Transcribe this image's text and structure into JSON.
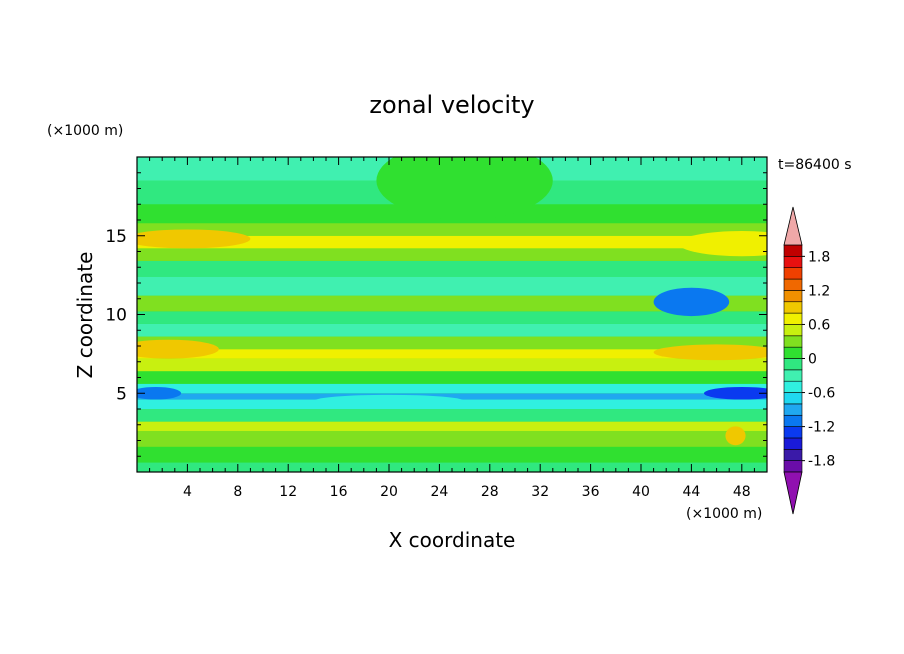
{
  "chart_data": {
    "type": "heatmap",
    "title": "zonal velocity",
    "xlabel": "X coordinate",
    "ylabel": "Z coordinate",
    "x_unit": "(×1000 m)",
    "y_unit": "(×1000 m)",
    "time_label": "t=86400 s",
    "xlim": [
      0,
      50
    ],
    "ylim": [
      0,
      20
    ],
    "x_ticks": [
      4,
      8,
      12,
      16,
      20,
      24,
      28,
      32,
      36,
      40,
      44,
      48
    ],
    "y_ticks": [
      5,
      10,
      15
    ],
    "colorbar": {
      "levels": [
        -2.0,
        -1.8,
        -1.6,
        -1.4,
        -1.2,
        -1.0,
        -0.8,
        -0.6,
        -0.4,
        -0.2,
        0,
        0.2,
        0.4,
        0.6,
        0.8,
        1.0,
        1.2,
        1.4,
        1.6,
        1.8,
        2.0
      ],
      "labels": [
        "-1.8",
        "-1.2",
        "-0.6",
        "0",
        "0.6",
        "1.2",
        "1.8"
      ],
      "label_values": [
        -1.8,
        -1.2,
        -0.6,
        0,
        0.6,
        1.2,
        1.8
      ],
      "colors": [
        "#6a0da8",
        "#3a1aa8",
        "#1a1ad8",
        "#0a3af0",
        "#0a78f0",
        "#20a8f0",
        "#20d8f0",
        "#30f0e0",
        "#40f0b0",
        "#30e880",
        "#30e030",
        "#80e020",
        "#c8f010",
        "#f0f000",
        "#f0c800",
        "#f09000",
        "#f06800",
        "#f04000",
        "#e81010",
        "#c00000"
      ],
      "under_color": "#9010b0",
      "over_color": "#f0a8a8"
    },
    "bands": [
      {
        "z": 0.6,
        "value": -0.1
      },
      {
        "z": 1.6,
        "value": 0.0
      },
      {
        "z": 2.6,
        "value": 0.2
      },
      {
        "z": 3.2,
        "value": 0.4
      },
      {
        "z": 4.0,
        "value": -0.2
      },
      {
        "z": 4.6,
        "value": -0.6
      },
      {
        "z": 5.0,
        "value": -0.9
      },
      {
        "z": 5.6,
        "value": -0.5
      },
      {
        "z": 6.4,
        "value": 0.1
      },
      {
        "z": 7.2,
        "value": 0.4
      },
      {
        "z": 7.8,
        "value": 0.6
      },
      {
        "z": 8.6,
        "value": 0.2
      },
      {
        "z": 9.4,
        "value": -0.3
      },
      {
        "z": 10.2,
        "value": -0.1
      },
      {
        "z": 11.2,
        "value": 0.2
      },
      {
        "z": 12.4,
        "value": -0.3
      },
      {
        "z": 13.4,
        "value": -0.1
      },
      {
        "z": 14.2,
        "value": 0.3
      },
      {
        "z": 15.0,
        "value": 0.6
      },
      {
        "z": 15.8,
        "value": 0.3
      },
      {
        "z": 17.0,
        "value": 0.0
      },
      {
        "z": 18.5,
        "value": -0.2
      },
      {
        "z": 20.0,
        "value": -0.3
      }
    ],
    "features": [
      {
        "x": 44,
        "z": 10.8,
        "rx": 3.0,
        "rz": 0.9,
        "value": -1.2
      },
      {
        "x": 48,
        "z": 5.0,
        "rx": 3.0,
        "rz": 0.4,
        "value": -1.4
      },
      {
        "x": 1.5,
        "z": 5.0,
        "rx": 2.0,
        "rz": 0.4,
        "value": -1.2
      },
      {
        "x": 2.5,
        "z": 7.8,
        "rx": 4.0,
        "rz": 0.6,
        "value": 0.8
      },
      {
        "x": 46,
        "z": 7.6,
        "rx": 5.0,
        "rz": 0.5,
        "value": 0.8
      },
      {
        "x": 4.0,
        "z": 14.8,
        "rx": 5.0,
        "rz": 0.6,
        "value": 0.8
      },
      {
        "x": 48,
        "z": 14.5,
        "rx": 5.0,
        "rz": 0.8,
        "value": 0.7
      },
      {
        "x": 26,
        "z": 18.5,
        "rx": 7.0,
        "rz": 2.5,
        "value": 0.1
      },
      {
        "x": 20,
        "z": 4.5,
        "rx": 6.0,
        "rz": 0.4,
        "value": -0.5
      },
      {
        "x": 47.5,
        "z": 2.3,
        "rx": 0.8,
        "rz": 0.6,
        "value": 0.9
      }
    ]
  }
}
